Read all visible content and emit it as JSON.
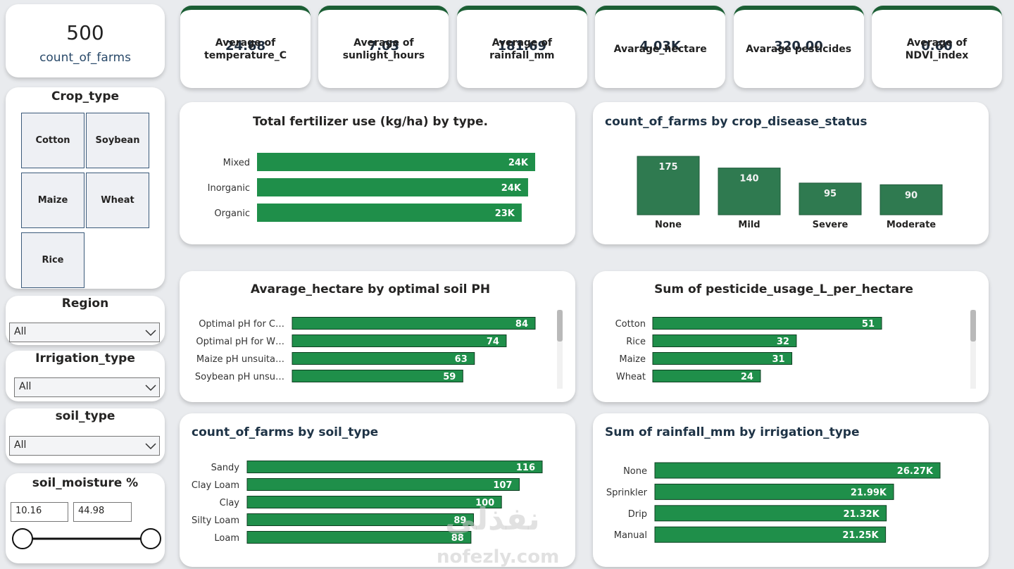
{
  "count_card": {
    "value": "500",
    "label": "count_of_farms"
  },
  "kpis": [
    {
      "value": "24.68",
      "label": "Average of temperature_C"
    },
    {
      "value": "7.03",
      "label": "Average of sunlight_hours"
    },
    {
      "value": "181.69",
      "label": "Average of rainfall_mm"
    },
    {
      "value": "4.03K",
      "label": "Avarage_hectare"
    },
    {
      "value": "320.00",
      "label": "Avarage pesticides"
    },
    {
      "value": "0.60",
      "label": "Average of NDVI_index"
    }
  ],
  "slicers": {
    "crop_type": {
      "title": "Crop_type",
      "options": [
        "Cotton",
        "Soybean",
        "Maize",
        "Wheat",
        "Rice"
      ]
    },
    "region": {
      "title": "Region",
      "selected": "All"
    },
    "irrigation_type": {
      "title": "Irrigation_type",
      "selected": "All"
    },
    "soil_type": {
      "title": "soil_type",
      "selected": "All"
    },
    "soil_moisture": {
      "title": "soil_moisture %",
      "min": "10.16",
      "max": "44.98"
    }
  },
  "chart_data": [
    {
      "type": "bar",
      "orientation": "horizontal",
      "title": "Total fertilizer use (kg/ha) by type.",
      "categories": [
        "Mixed",
        "Inorganic",
        "Organic"
      ],
      "values": [
        24380,
        23760,
        23200
      ],
      "value_labels": [
        "24K",
        "24K",
        "23K"
      ],
      "color": "#1f8f4a"
    },
    {
      "type": "bar",
      "orientation": "vertical",
      "title": "count_of_farms by crop_disease_status",
      "categories": [
        "None",
        "Mild",
        "Severe",
        "Moderate"
      ],
      "values": [
        175,
        140,
        95,
        90
      ],
      "color": "#2f7a50"
    },
    {
      "type": "bar",
      "orientation": "horizontal",
      "title": "Avarage_hectare by optimal soil PH",
      "categories": [
        "Optimal pH for C…",
        "Optimal pH for W…",
        "Maize pH unsuita…",
        "Soybean pH unsu…"
      ],
      "values": [
        84,
        74,
        63,
        59
      ],
      "color": "#1f8f4a"
    },
    {
      "type": "bar",
      "orientation": "horizontal",
      "title": "Sum of pesticide_usage_L_per_hectare",
      "categories": [
        "Cotton",
        "Rice",
        "Maize",
        "Wheat"
      ],
      "values": [
        51,
        32,
        31,
        24
      ],
      "color": "#1f8f4a"
    },
    {
      "type": "bar",
      "orientation": "horizontal",
      "title": "count_of_farms by soil_type",
      "categories": [
        "Sandy",
        "Clay Loam",
        "Clay",
        "Silty Loam",
        "Loam"
      ],
      "values": [
        116,
        107,
        100,
        89,
        88
      ],
      "color": "#1f8f4a"
    },
    {
      "type": "bar",
      "orientation": "horizontal",
      "title": "Sum of rainfall_mm by irrigation_type",
      "categories": [
        "None",
        "Sprinkler",
        "Drip",
        "Manual"
      ],
      "values": [
        26270,
        21990,
        21320,
        21250
      ],
      "value_labels": [
        "26.27K",
        "21.99K",
        "21.32K",
        "21.25K"
      ],
      "color": "#1f8f4a"
    }
  ],
  "watermark": [
    "نفذلي",
    "nofezly.com"
  ]
}
